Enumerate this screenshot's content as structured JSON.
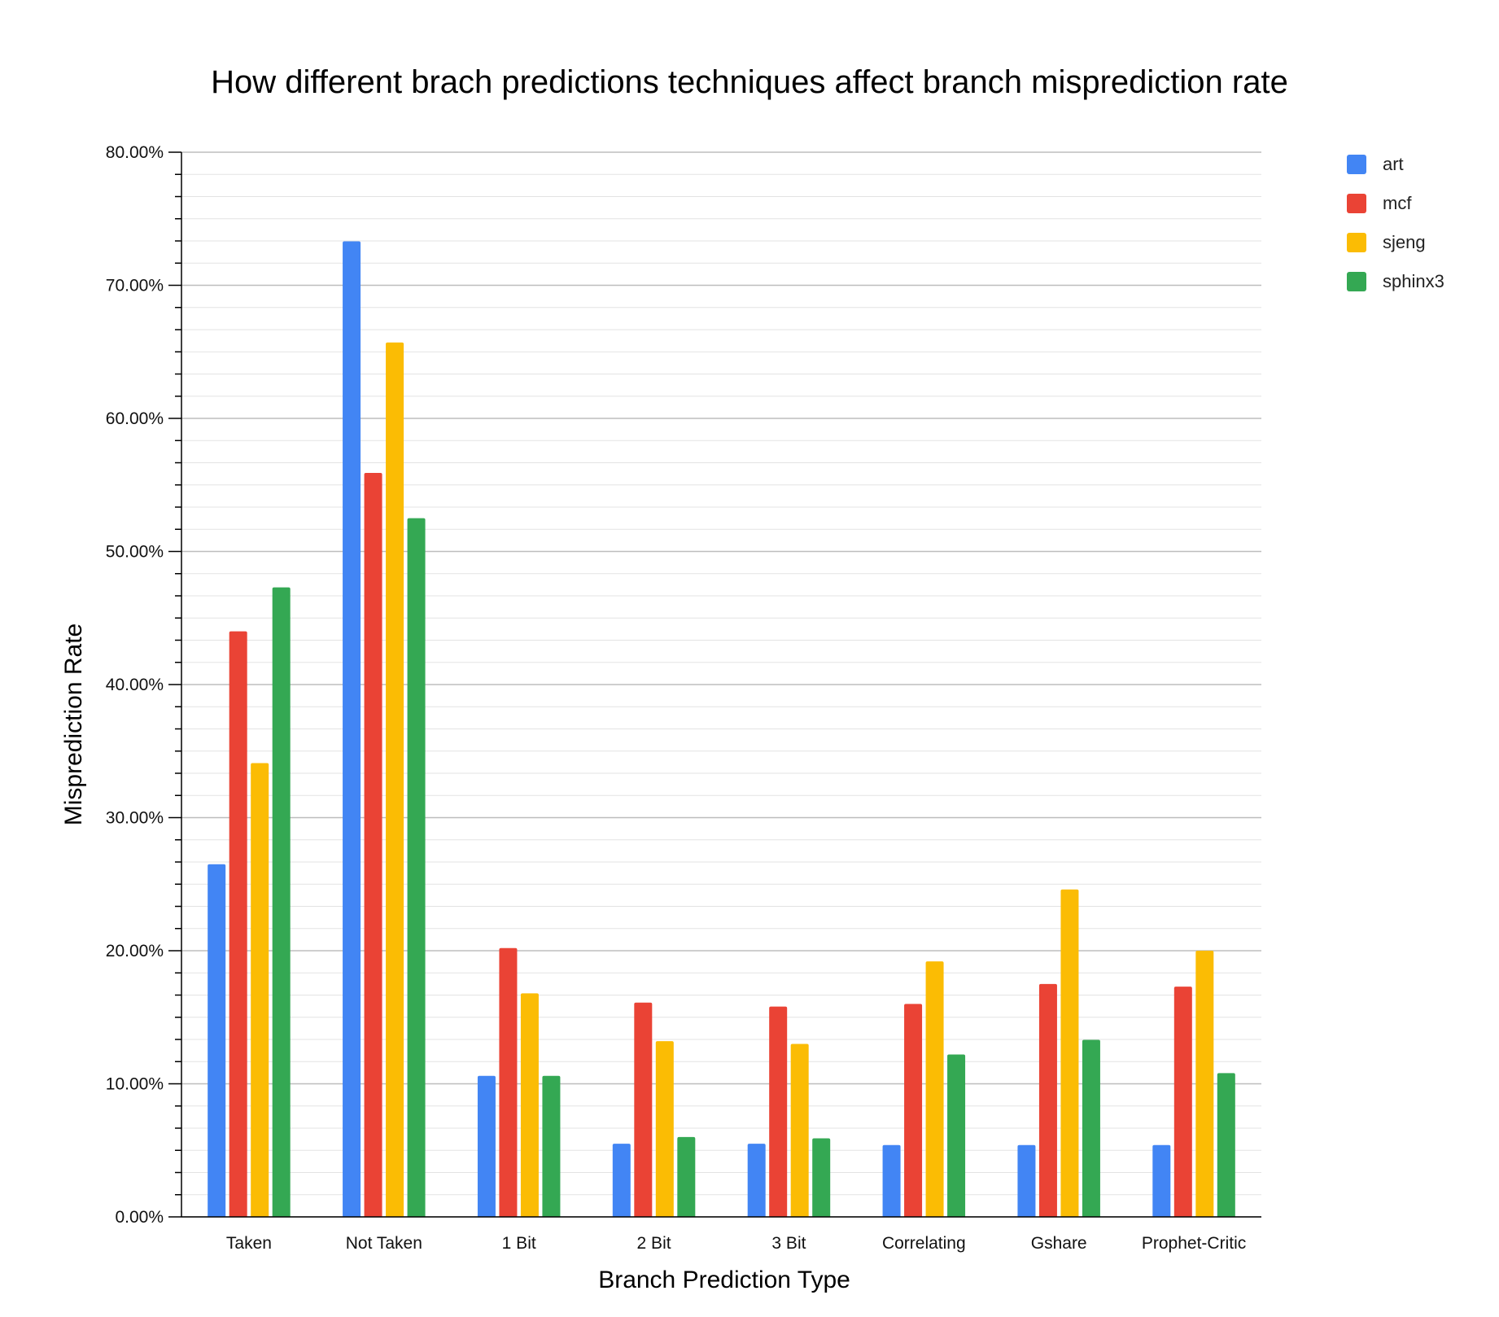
{
  "chart_data": {
    "type": "bar",
    "title": "How different brach predictions techniques affect branch misprediction rate",
    "xlabel": "Branch Prediction Type",
    "ylabel": "Misprediction Rate",
    "ylim": [
      0,
      0.8
    ],
    "y_ticks": [
      "0.00%",
      "10.00%",
      "20.00%",
      "30.00%",
      "40.00%",
      "50.00%",
      "60.00%",
      "70.00%",
      "80.00%"
    ],
    "grid": true,
    "legend_position": "right",
    "categories": [
      "Taken",
      "Not Taken",
      "1 Bit",
      "2 Bit",
      "3 Bit",
      "Correlating",
      "Gshare",
      "Prophet-Critic"
    ],
    "series": [
      {
        "name": "art",
        "color": "#4285f4",
        "values": [
          0.265,
          0.733,
          0.106,
          0.055,
          0.055,
          0.054,
          0.054,
          0.054
        ]
      },
      {
        "name": "mcf",
        "color": "#ea4335",
        "values": [
          0.44,
          0.559,
          0.202,
          0.161,
          0.158,
          0.16,
          0.175,
          0.173
        ]
      },
      {
        "name": "sjeng",
        "color": "#fbbc04",
        "values": [
          0.341,
          0.657,
          0.168,
          0.132,
          0.13,
          0.192,
          0.246,
          0.2
        ]
      },
      {
        "name": "sphinx3",
        "color": "#34a853",
        "values": [
          0.473,
          0.525,
          0.106,
          0.06,
          0.059,
          0.122,
          0.133,
          0.108
        ]
      }
    ]
  }
}
